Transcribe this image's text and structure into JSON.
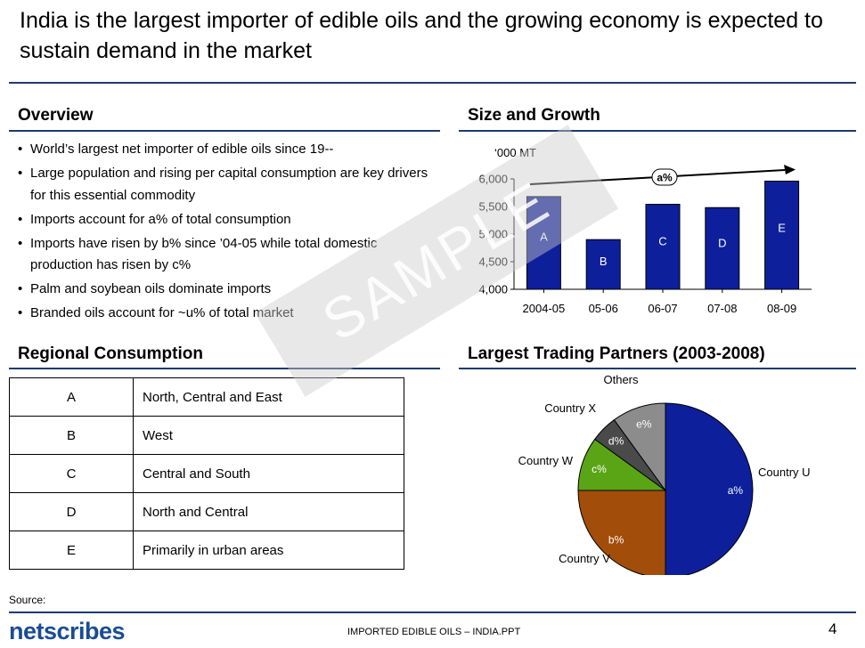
{
  "title": "India is the largest importer of edible oils and the growing economy is expected to sustain demand in the market",
  "overview": {
    "heading": "Overview",
    "bullets": [
      "World’s largest net importer of edible oils since 19--",
      "Large population and rising per capital consumption are key drivers for this essential commodity",
      "Imports account for a% of total consumption",
      "Imports have risen by b% since ’04-05 while total domestic production has risen by c%",
      "Palm and soybean oils dominate imports",
      "Branded oils account for ~u% of total market"
    ]
  },
  "regional": {
    "heading": "Regional Consumption",
    "rows": [
      {
        "key": "A",
        "value": "North, Central and East"
      },
      {
        "key": "B",
        "value": "West"
      },
      {
        "key": "C",
        "value": "Central and South"
      },
      {
        "key": "D",
        "value": "North and Central"
      },
      {
        "key": "E",
        "value": "Primarily in urban areas"
      }
    ]
  },
  "watermark": "SAMPLE",
  "size_growth": {
    "heading": "Size and Growth"
  },
  "partners": {
    "heading": "Largest Trading Partners (2003-2008)"
  },
  "chart_data": [
    {
      "type": "bar",
      "unit_label": "‘000 MT",
      "categories": [
        "2004-05",
        "05-06",
        "06-07",
        "07-08",
        "08-09"
      ],
      "values": [
        5680,
        4900,
        5540,
        5480,
        5960
      ],
      "bar_labels": [
        "A",
        "B",
        "C",
        "D",
        "E"
      ],
      "ylim": [
        4000,
        6000
      ],
      "yticks": [
        "4,000",
        "4,500",
        "5,000",
        "5,500",
        "6,000"
      ],
      "growth_label": "a%",
      "color": "#0d1f9a"
    },
    {
      "type": "pie",
      "slices": [
        {
          "name": "Country U",
          "label": "a%",
          "value": 50,
          "color": "#0d1f9a"
        },
        {
          "name": "Country V",
          "label": "b%",
          "value": 25,
          "color": "#a34d0a"
        },
        {
          "name": "Country W",
          "label": "c%",
          "value": 10,
          "color": "#5aa515"
        },
        {
          "name": "Country X",
          "label": "d%",
          "value": 5,
          "color": "#4a4a4a"
        },
        {
          "name": "Others",
          "label": "e%",
          "value": 10,
          "color": "#8c8c8c"
        }
      ]
    }
  ],
  "footer": {
    "source": "Source:",
    "logo": "netscribes",
    "doc": "IMPORTED EDIBLE OILS – INDIA.PPT",
    "page": "4"
  }
}
